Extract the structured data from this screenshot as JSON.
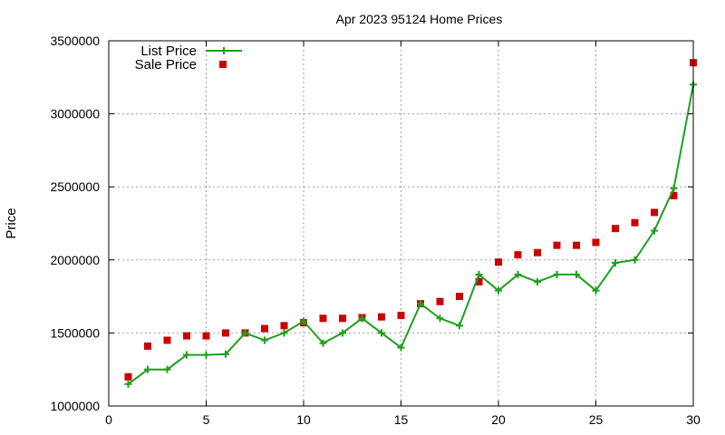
{
  "chart_data": {
    "type": "line",
    "title": "Apr 2023 95124 Home Prices",
    "xlabel": "",
    "ylabel": "Price",
    "xlim": [
      0,
      30
    ],
    "ylim": [
      1000000,
      3500000
    ],
    "x_ticks": [
      "0",
      "5",
      "10",
      "15",
      "20",
      "25",
      "30"
    ],
    "y_ticks": [
      "1000000",
      "1500000",
      "2000000",
      "2500000",
      "3000000",
      "3500000"
    ],
    "grid": true,
    "legend_position": "top-left",
    "x": [
      1,
      2,
      3,
      4,
      5,
      6,
      7,
      8,
      9,
      10,
      11,
      12,
      13,
      14,
      15,
      16,
      17,
      18,
      19,
      20,
      21,
      22,
      23,
      24,
      25,
      26,
      27,
      28,
      29,
      30
    ],
    "series": [
      {
        "name": "List Price",
        "style": "line-with-plus",
        "color": "#1ea01e",
        "values": [
          1150000,
          1250000,
          1250000,
          1350000,
          1350000,
          1355000,
          1500000,
          1450000,
          1500000,
          1580000,
          1430000,
          1500000,
          1600000,
          1500000,
          1400000,
          1700000,
          1600000,
          1550000,
          1900000,
          1790000,
          1900000,
          1850000,
          1900000,
          1900000,
          1790000,
          1980000,
          2000000,
          2200000,
          2490000,
          3200000
        ]
      },
      {
        "name": "Sale Price",
        "style": "square-markers",
        "color": "#cc0000",
        "values": [
          1200000,
          1410000,
          1450000,
          1480000,
          1480000,
          1500000,
          1500000,
          1530000,
          1550000,
          1570000,
          1600000,
          1600000,
          1605000,
          1610000,
          1620000,
          1700000,
          1715000,
          1750000,
          1850000,
          1985000,
          2035000,
          2050000,
          2100000,
          2100000,
          2120000,
          2215000,
          2255000,
          2325000,
          2440000,
          3350000
        ]
      }
    ]
  }
}
